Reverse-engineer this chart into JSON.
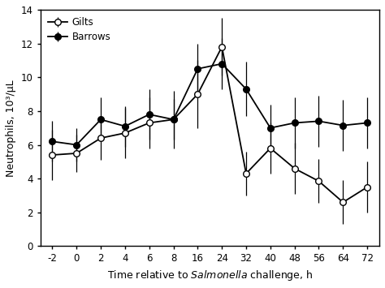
{
  "x_labels": [
    "-2",
    "0",
    "2",
    "4",
    "6",
    "8",
    "16",
    "24",
    "32",
    "40",
    "48",
    "56",
    "64",
    "72"
  ],
  "x_vals": [
    0,
    1,
    2,
    3,
    4,
    5,
    6,
    7,
    8,
    9,
    10,
    11,
    12,
    13
  ],
  "gilts_y": [
    5.4,
    5.5,
    6.4,
    6.7,
    7.3,
    7.5,
    9.0,
    11.8,
    4.3,
    5.8,
    4.6,
    3.85,
    2.6,
    3.5
  ],
  "gilts_err": [
    1.5,
    1.1,
    1.3,
    1.5,
    1.5,
    1.2,
    2.0,
    1.7,
    1.3,
    1.5,
    1.5,
    1.3,
    1.3,
    1.5
  ],
  "barrows_y": [
    6.2,
    6.0,
    7.5,
    7.1,
    7.8,
    7.5,
    10.5,
    10.8,
    9.3,
    7.0,
    7.3,
    7.4,
    7.15,
    7.3
  ],
  "barrows_err": [
    1.2,
    1.0,
    1.3,
    1.2,
    1.5,
    1.7,
    1.5,
    1.5,
    1.6,
    1.4,
    1.5,
    1.5,
    1.5,
    1.5
  ],
  "ylabel": "Neutrophils, 10³/μL",
  "ylim": [
    0,
    14
  ],
  "yticks": [
    0,
    2,
    4,
    6,
    8,
    10,
    12,
    14
  ],
  "legend_labels": [
    "Gilts",
    "Barrows"
  ],
  "bg_color": "white"
}
